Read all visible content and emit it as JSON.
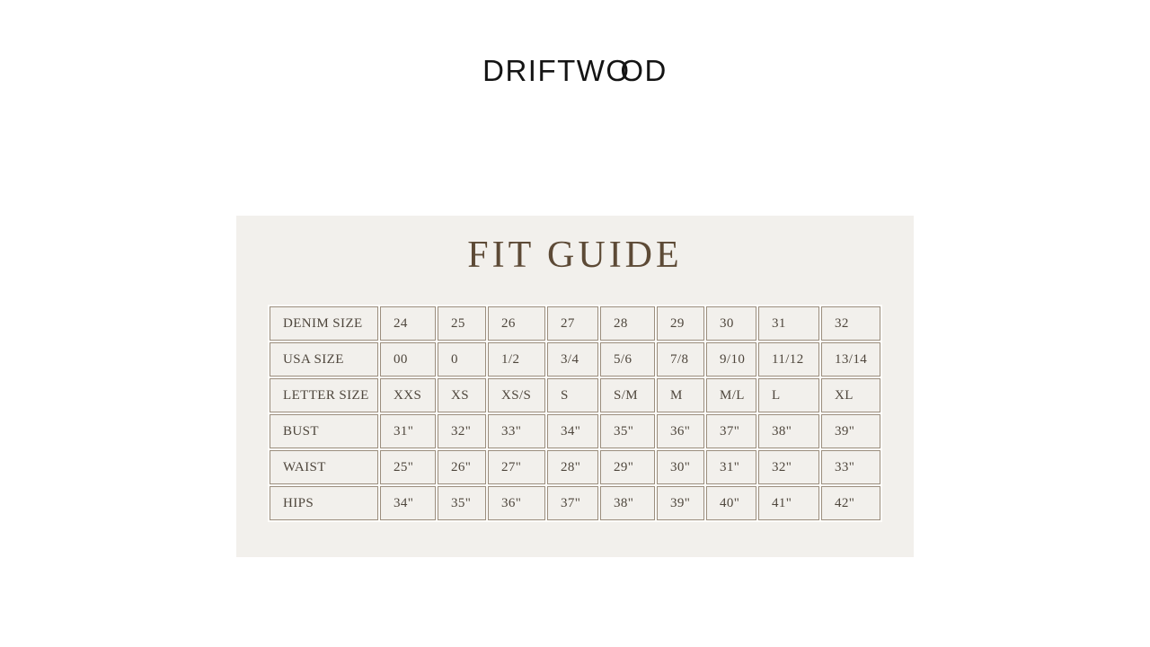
{
  "brand": {
    "logo_part1": "DRIFTW",
    "logo_o1": "O",
    "logo_o2": "O",
    "logo_part2": "D"
  },
  "fit_guide": {
    "title": "FIT GUIDE",
    "table": {
      "rows": [
        {
          "label": "DENIM SIZE",
          "values": [
            "24",
            "25",
            "26",
            "27",
            "28",
            "29",
            "30",
            "31",
            "32"
          ]
        },
        {
          "label": "USA SIZE",
          "values": [
            "00",
            "0",
            "1/2",
            "3/4",
            "5/6",
            "7/8",
            "9/10",
            "11/12",
            "13/14"
          ]
        },
        {
          "label": "LETTER SIZE",
          "values": [
            "XXS",
            "XS",
            "XS/S",
            "S",
            "S/M",
            "M",
            "M/L",
            "L",
            "XL"
          ]
        },
        {
          "label": "BUST",
          "values": [
            "31\"",
            "32\"",
            "33\"",
            "34\"",
            "35\"",
            "36\"",
            "37\"",
            "38\"",
            "39\""
          ]
        },
        {
          "label": "WAIST",
          "values": [
            "25\"",
            "26\"",
            "27\"",
            "28\"",
            "29\"",
            "30\"",
            "31\"",
            "32\"",
            "33\""
          ]
        },
        {
          "label": "HIPS",
          "values": [
            "34\"",
            "35\"",
            "36\"",
            "37\"",
            "38\"",
            "39\"",
            "40\"",
            "41\"",
            "42\""
          ]
        }
      ]
    }
  },
  "colors": {
    "page_bg": "#ffffff",
    "panel_bg": "#f2f0ec",
    "table_gap_bg": "#fdfcf9",
    "cell_bg": "#f2f0ec",
    "border": "#9b8e7e",
    "title_text": "#5d4a36",
    "table_text": "#4e463c",
    "logo_text": "#141414"
  }
}
